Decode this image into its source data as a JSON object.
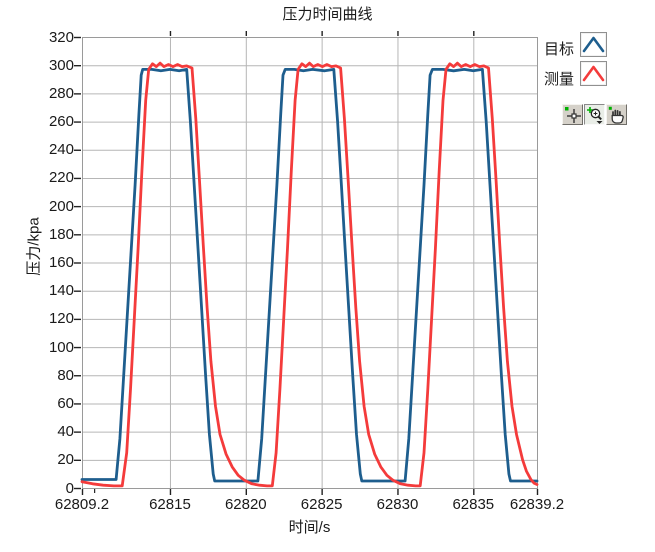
{
  "title": "压力时间曲线",
  "legend": {
    "items": [
      {
        "label": "目标",
        "color": "#1E5E8E"
      },
      {
        "label": "测量",
        "color": "#F43B3B"
      }
    ]
  },
  "palette": {
    "tools": [
      {
        "name": "cursor-tool",
        "selected": false
      },
      {
        "name": "zoom-tool",
        "selected": true
      },
      {
        "name": "pan-tool",
        "selected": false
      }
    ],
    "accent_green": "#00B000"
  },
  "chart_data": {
    "type": "line",
    "title": "压力时间曲线",
    "xlabel": "时间/s",
    "ylabel": "压力/kpa",
    "xlim": [
      62809.2,
      62839.2
    ],
    "ylim": [
      0,
      320
    ],
    "grid": true,
    "grid_color": "#B6B6B6",
    "border_color": "#9A9A9A",
    "tick_color": "#222222",
    "x_ticks": [
      62809.2,
      62815,
      62820,
      62825,
      62830,
      62835,
      62839.2
    ],
    "x_tick_labels": [
      "62809.2",
      "62815",
      "62820",
      "62825",
      "62830",
      "62835",
      "62839.2"
    ],
    "x_minor_ticks": [
      62810
    ],
    "y_ticks": [
      0,
      20,
      40,
      60,
      80,
      100,
      120,
      140,
      160,
      180,
      200,
      220,
      240,
      260,
      280,
      300,
      320
    ],
    "legend_position": "top-right",
    "series": [
      {
        "name": "目标",
        "color": "#1E5E8E",
        "points": [
          [
            62809.2,
            6
          ],
          [
            62810.2,
            6
          ],
          [
            62811.2,
            6
          ],
          [
            62811.45,
            6
          ],
          [
            62811.7,
            35
          ],
          [
            62811.95,
            80
          ],
          [
            62812.2,
            125
          ],
          [
            62812.45,
            170
          ],
          [
            62812.7,
            215
          ],
          [
            62812.95,
            265
          ],
          [
            62813.1,
            293
          ],
          [
            62813.2,
            297
          ],
          [
            62813.8,
            297
          ],
          [
            62814.4,
            296
          ],
          [
            62815.0,
            297
          ],
          [
            62815.6,
            296
          ],
          [
            62816.1,
            297
          ],
          [
            62816.35,
            260
          ],
          [
            62816.6,
            215
          ],
          [
            62816.85,
            170
          ],
          [
            62817.1,
            125
          ],
          [
            62817.35,
            80
          ],
          [
            62817.6,
            38
          ],
          [
            62817.85,
            10
          ],
          [
            62817.95,
            5
          ],
          [
            62818.6,
            5
          ],
          [
            62819.6,
            5
          ],
          [
            62820.8,
            5
          ],
          [
            62821.05,
            35
          ],
          [
            62821.3,
            80
          ],
          [
            62821.55,
            125
          ],
          [
            62821.8,
            170
          ],
          [
            62822.05,
            215
          ],
          [
            62822.3,
            265
          ],
          [
            62822.45,
            293
          ],
          [
            62822.6,
            297
          ],
          [
            62823.2,
            297
          ],
          [
            62823.8,
            296
          ],
          [
            62824.4,
            297
          ],
          [
            62825.2,
            296
          ],
          [
            62825.8,
            297
          ],
          [
            62826.05,
            260
          ],
          [
            62826.3,
            215
          ],
          [
            62826.55,
            170
          ],
          [
            62826.8,
            125
          ],
          [
            62827.05,
            80
          ],
          [
            62827.3,
            38
          ],
          [
            62827.55,
            10
          ],
          [
            62827.65,
            5
          ],
          [
            62828.4,
            5
          ],
          [
            62829.4,
            5
          ],
          [
            62830.5,
            5
          ],
          [
            62830.75,
            35
          ],
          [
            62831.0,
            80
          ],
          [
            62831.25,
            125
          ],
          [
            62831.5,
            170
          ],
          [
            62831.75,
            215
          ],
          [
            62832.0,
            265
          ],
          [
            62832.15,
            293
          ],
          [
            62832.3,
            297
          ],
          [
            62833.0,
            297
          ],
          [
            62833.7,
            296
          ],
          [
            62834.4,
            297
          ],
          [
            62835.0,
            296
          ],
          [
            62835.6,
            297
          ],
          [
            62835.85,
            260
          ],
          [
            62836.1,
            215
          ],
          [
            62836.35,
            170
          ],
          [
            62836.6,
            125
          ],
          [
            62836.85,
            80
          ],
          [
            62837.1,
            38
          ],
          [
            62837.35,
            10
          ],
          [
            62837.45,
            5
          ],
          [
            62838.2,
            5
          ],
          [
            62839.2,
            5
          ]
        ]
      },
      {
        "name": "测量",
        "color": "#F43B3B",
        "points": [
          [
            62809.2,
            4.5
          ],
          [
            62809.9,
            3
          ],
          [
            62810.6,
            2
          ],
          [
            62811.3,
            1.5
          ],
          [
            62811.85,
            1.5
          ],
          [
            62812.15,
            25
          ],
          [
            62812.4,
            70
          ],
          [
            62812.65,
            120
          ],
          [
            62812.9,
            170
          ],
          [
            62813.15,
            225
          ],
          [
            62813.4,
            275
          ],
          [
            62813.6,
            297
          ],
          [
            62813.85,
            301
          ],
          [
            62814.1,
            299
          ],
          [
            62814.35,
            301.5
          ],
          [
            62814.6,
            299
          ],
          [
            62814.9,
            300.5
          ],
          [
            62815.2,
            299
          ],
          [
            62815.5,
            300.5
          ],
          [
            62815.8,
            299
          ],
          [
            62816.1,
            299.5
          ],
          [
            62816.45,
            298
          ],
          [
            62816.7,
            262
          ],
          [
            62816.95,
            218
          ],
          [
            62817.2,
            172
          ],
          [
            62817.45,
            128
          ],
          [
            62817.7,
            90
          ],
          [
            62818.0,
            58
          ],
          [
            62818.3,
            38
          ],
          [
            62818.7,
            24
          ],
          [
            62819.1,
            15
          ],
          [
            62819.5,
            9
          ],
          [
            62819.9,
            5.5
          ],
          [
            62820.4,
            3
          ],
          [
            62820.9,
            2
          ],
          [
            62821.4,
            1.5
          ],
          [
            62821.75,
            1.5
          ],
          [
            62822.0,
            25
          ],
          [
            62822.25,
            70
          ],
          [
            62822.5,
            120
          ],
          [
            62822.75,
            170
          ],
          [
            62823.0,
            225
          ],
          [
            62823.25,
            275
          ],
          [
            62823.45,
            297
          ],
          [
            62823.7,
            301
          ],
          [
            62823.95,
            299
          ],
          [
            62824.2,
            301.5
          ],
          [
            62824.45,
            299
          ],
          [
            62824.75,
            300.5
          ],
          [
            62825.05,
            299
          ],
          [
            62825.35,
            300.5
          ],
          [
            62825.65,
            299
          ],
          [
            62825.95,
            299.5
          ],
          [
            62826.25,
            298
          ],
          [
            62826.5,
            262
          ],
          [
            62826.75,
            218
          ],
          [
            62827.0,
            172
          ],
          [
            62827.25,
            128
          ],
          [
            62827.5,
            90
          ],
          [
            62827.8,
            58
          ],
          [
            62828.1,
            38
          ],
          [
            62828.5,
            24
          ],
          [
            62828.9,
            15
          ],
          [
            62829.3,
            9
          ],
          [
            62829.7,
            5.5
          ],
          [
            62830.2,
            3
          ],
          [
            62830.7,
            2
          ],
          [
            62831.2,
            1.5
          ],
          [
            62831.5,
            1.5
          ],
          [
            62831.75,
            25
          ],
          [
            62832.0,
            70
          ],
          [
            62832.25,
            120
          ],
          [
            62832.5,
            170
          ],
          [
            62832.75,
            225
          ],
          [
            62833.0,
            275
          ],
          [
            62833.2,
            297
          ],
          [
            62833.45,
            301
          ],
          [
            62833.7,
            299
          ],
          [
            62833.95,
            301.5
          ],
          [
            62834.2,
            299
          ],
          [
            62834.5,
            300.5
          ],
          [
            62834.8,
            299
          ],
          [
            62835.1,
            300.5
          ],
          [
            62835.4,
            299
          ],
          [
            62835.7,
            299.5
          ],
          [
            62836.0,
            298
          ],
          [
            62836.25,
            262
          ],
          [
            62836.5,
            218
          ],
          [
            62836.75,
            172
          ],
          [
            62837.0,
            128
          ],
          [
            62837.25,
            90
          ],
          [
            62837.55,
            58
          ],
          [
            62837.85,
            38
          ],
          [
            62838.25,
            20
          ],
          [
            62838.5,
            12
          ],
          [
            62838.8,
            6
          ],
          [
            62839.0,
            3.5
          ],
          [
            62839.2,
            2.5
          ]
        ]
      }
    ]
  }
}
